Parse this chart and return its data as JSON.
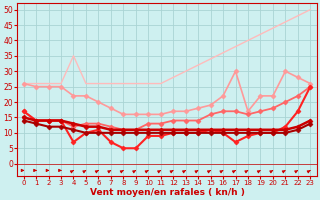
{
  "x": [
    0,
    1,
    2,
    3,
    4,
    5,
    6,
    7,
    8,
    9,
    10,
    11,
    12,
    13,
    14,
    15,
    16,
    17,
    18,
    19,
    20,
    21,
    22,
    23
  ],
  "series": [
    {
      "name": "upper_light",
      "values": [
        26,
        26,
        26,
        26,
        35,
        26,
        26,
        26,
        26,
        26,
        26,
        26,
        28,
        30,
        32,
        34,
        36,
        38,
        40,
        42,
        44,
        46,
        48,
        50
      ],
      "color": "#ffbbbb",
      "linewidth": 1.0,
      "marker": null,
      "markersize": 0
    },
    {
      "name": "rafales_high",
      "values": [
        26,
        25,
        25,
        25,
        22,
        22,
        20,
        18,
        16,
        16,
        16,
        16,
        17,
        17,
        18,
        19,
        22,
        30,
        17,
        22,
        22,
        30,
        28,
        26
      ],
      "color": "#ff9999",
      "linewidth": 1.2,
      "marker": "D",
      "markersize": 2.5
    },
    {
      "name": "rafales_mid",
      "values": [
        17,
        14,
        14,
        14,
        12,
        13,
        13,
        12,
        11,
        11,
        13,
        13,
        14,
        14,
        14,
        16,
        17,
        17,
        16,
        17,
        18,
        20,
        22,
        25
      ],
      "color": "#ff6666",
      "linewidth": 1.3,
      "marker": "D",
      "markersize": 2.5
    },
    {
      "name": "vent_moyen",
      "values": [
        17,
        14,
        14,
        14,
        7,
        10,
        11,
        7,
        5,
        5,
        9,
        9,
        10,
        10,
        10,
        11,
        10,
        7,
        9,
        10,
        10,
        12,
        17,
        25
      ],
      "color": "#ff2222",
      "linewidth": 1.5,
      "marker": "D",
      "markersize": 2.5
    },
    {
      "name": "vent_min1",
      "values": [
        15,
        14,
        14,
        14,
        13,
        12,
        12,
        11,
        11,
        11,
        11,
        11,
        11,
        11,
        11,
        11,
        11,
        11,
        11,
        11,
        11,
        11,
        12,
        14
      ],
      "color": "#cc0000",
      "linewidth": 1.8,
      "marker": "D",
      "markersize": 2.5
    },
    {
      "name": "vent_min2",
      "values": [
        14,
        13,
        12,
        12,
        11,
        10,
        10,
        10,
        10,
        10,
        10,
        10,
        10,
        10,
        10,
        10,
        10,
        10,
        10,
        10,
        10,
        10,
        11,
        13
      ],
      "color": "#aa0000",
      "linewidth": 1.5,
      "marker": "D",
      "markersize": 2.5
    }
  ],
  "arrow_angles_deg": [
    0,
    0,
    0,
    0,
    45,
    45,
    45,
    45,
    45,
    45,
    45,
    45,
    45,
    45,
    45,
    45,
    45,
    45,
    45,
    45,
    45,
    45,
    45,
    45
  ],
  "xlabel": "Vent moyen/en rafales ( kn/h )",
  "ylim": [
    -4,
    52
  ],
  "xlim": [
    -0.5,
    23.5
  ],
  "yticks": [
    0,
    5,
    10,
    15,
    20,
    25,
    30,
    35,
    40,
    45,
    50
  ],
  "xticks": [
    0,
    1,
    2,
    3,
    4,
    5,
    6,
    7,
    8,
    9,
    10,
    11,
    12,
    13,
    14,
    15,
    16,
    17,
    18,
    19,
    20,
    21,
    22,
    23
  ],
  "bg_color": "#cef0f0",
  "grid_color": "#aad4d4",
  "tick_color": "#cc0000",
  "xlabel_color": "#cc0000",
  "arrow_color": "#cc0000"
}
